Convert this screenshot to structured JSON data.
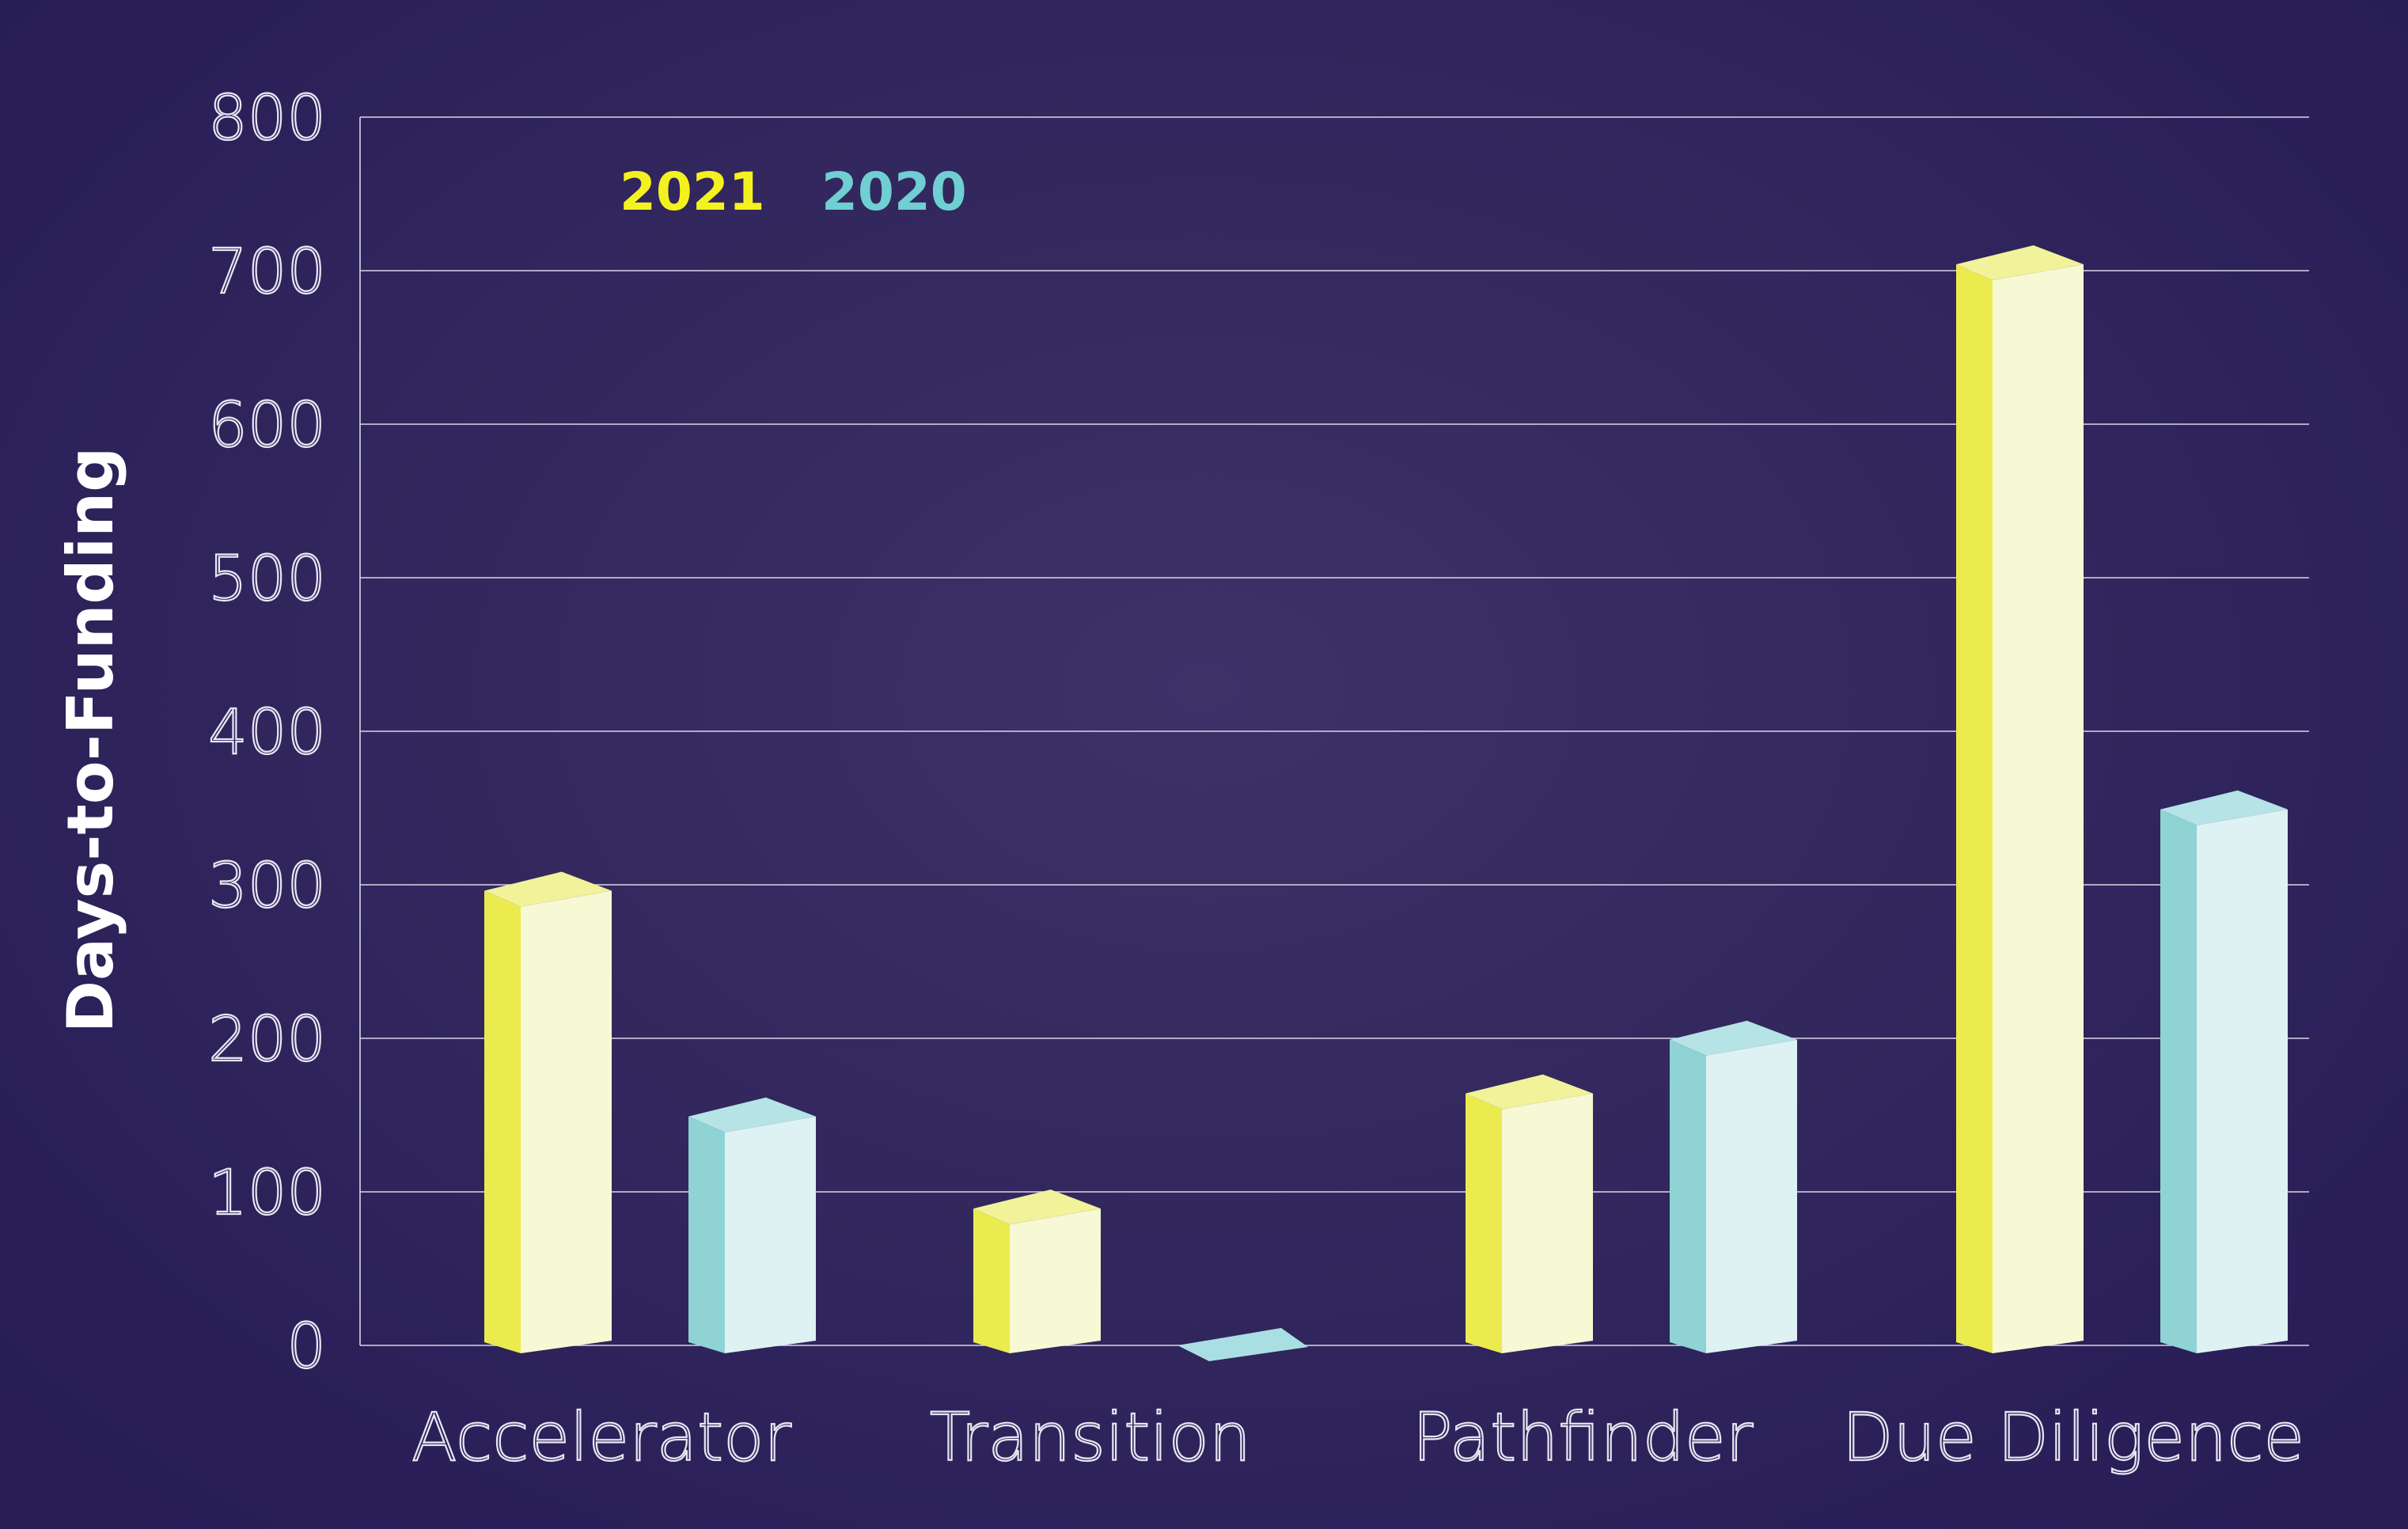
{
  "chart_data": {
    "type": "bar",
    "title": "",
    "xlabel": "",
    "ylabel": "Days-to-Funding",
    "ylim": [
      0,
      800
    ],
    "yticks": [
      0,
      100,
      200,
      300,
      400,
      500,
      600,
      700,
      800
    ],
    "grid": true,
    "legend_position": "top-left",
    "categories": [
      "Accelerator",
      "Transition",
      "Pathfinder",
      "Due Diligence"
    ],
    "series": [
      {
        "name": "2021",
        "values": [
          292,
          85,
          160,
          700
        ],
        "color": "#f0f078"
      },
      {
        "name": "2020",
        "values": [
          145,
          0,
          195,
          345
        ],
        "color": "#9ed8db"
      }
    ]
  }
}
